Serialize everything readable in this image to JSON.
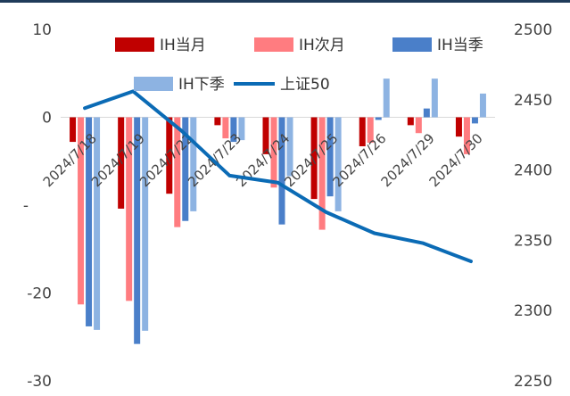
{
  "chart_data": {
    "type": "bar",
    "categories": [
      "2024/7/18",
      "2024/7/19",
      "2024/7/22",
      "2024/7/23",
      "2024/7/24",
      "2024/7/25",
      "2024/7/26",
      "2024/7/29",
      "2024/7/30"
    ],
    "series": [
      {
        "name": "IH当月",
        "kind": "bar",
        "axis": "left",
        "color": "#c00000",
        "values": [
          -2.8,
          -10.4,
          -8.7,
          -0.9,
          -4.2,
          -9.3,
          -3.3,
          -0.9,
          -2.2
        ]
      },
      {
        "name": "IH次月",
        "kind": "bar",
        "axis": "left",
        "color": "#ff7c80",
        "values": [
          -21.3,
          -20.9,
          -12.5,
          -2.4,
          -8.0,
          -12.8,
          -2.9,
          -1.8,
          -4.2
        ]
      },
      {
        "name": "IH当季",
        "kind": "bar",
        "axis": "left",
        "color": "#4a7fc9",
        "values": [
          -23.8,
          -25.8,
          -11.8,
          -2.8,
          -12.2,
          -9.0,
          -0.3,
          1.0,
          -0.7
        ]
      },
      {
        "name": "IH下季",
        "kind": "bar",
        "axis": "left",
        "color": "#8db3e2",
        "values": [
          -24.2,
          -24.3,
          -10.7,
          -2.6,
          -6.7,
          -10.7,
          4.4,
          4.4,
          2.7
        ]
      },
      {
        "name": "上证50",
        "kind": "line",
        "axis": "right",
        "color": "#0b6bb5",
        "values": [
          2444,
          2456,
          2428,
          2396,
          2391,
          2370,
          2355,
          2348,
          2335
        ]
      }
    ],
    "y_left": {
      "min": -30,
      "max": 10,
      "ticks": [
        10,
        0,
        -20,
        -30
      ],
      "tick_labels": [
        "10",
        "0",
        "-20",
        "-30"
      ]
    },
    "y_right": {
      "min": 2250,
      "max": 2500,
      "ticks": [
        2500,
        2450,
        2400,
        2350,
        2300,
        2250
      ]
    },
    "partial_tick_label": "-",
    "legend_position": "top",
    "grid": false
  }
}
